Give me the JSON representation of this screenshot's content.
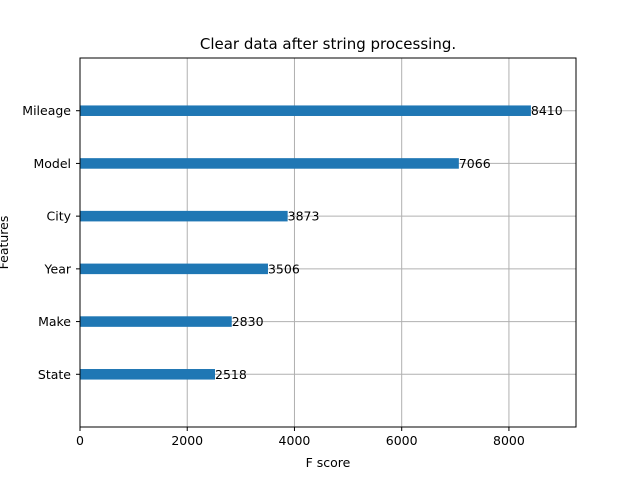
{
  "chart_data": {
    "type": "bar",
    "orientation": "horizontal",
    "title": "Clear data after string processing.",
    "xlabel": "F score",
    "ylabel": "Features",
    "categories": [
      "Mileage",
      "Model",
      "City",
      "Year",
      "Make",
      "State"
    ],
    "values": [
      8410,
      7066,
      3873,
      3506,
      2830,
      2518
    ],
    "xlim": [
      0,
      9251
    ],
    "xticks": [
      0,
      2000,
      4000,
      6000,
      8000
    ],
    "xtick_labels": [
      "0",
      "2000",
      "4000",
      "6000",
      "8000"
    ],
    "grid": true,
    "bar_color": "#1f77b4",
    "grid_color": "#b0b0b0"
  }
}
